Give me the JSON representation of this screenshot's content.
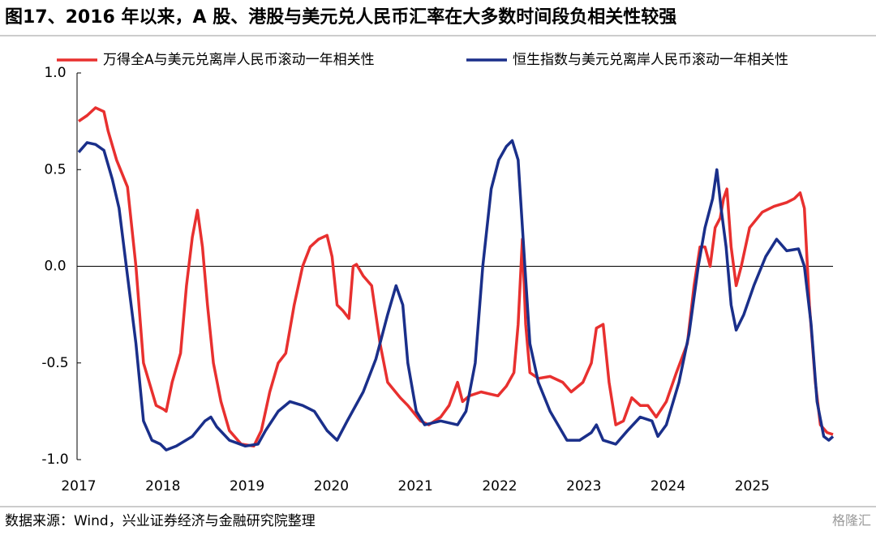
{
  "chart_data": {
    "type": "line",
    "title": "图17、2016 年以来，A 股、港股与美元兑人民币汇率在大多数时间段负相关性较强",
    "source": "数据来源：Wind，兴业证券经济与金融研究院整理",
    "watermark": "格隆汇",
    "xlim": [
      2017,
      2025.96
    ],
    "xticks": [
      2017,
      2018,
      2019,
      2020,
      2021,
      2022,
      2023,
      2024,
      2025
    ],
    "ylim": [
      -1,
      1
    ],
    "yticks": [
      {
        "value": -1,
        "label": "-1.0"
      },
      -0.5,
      {
        "value": 0,
        "label": "0.0"
      },
      0.5,
      {
        "value": 1,
        "label": "1.0"
      }
    ],
    "legend": "top",
    "series": [
      {
        "name": "万得全A与美元兑离岸人民币滚动一年相关性",
        "color": "#e8302f",
        "x": [
          2017.0,
          2017.1,
          2017.2,
          2017.3,
          2017.35,
          2017.45,
          2017.58,
          2017.68,
          2017.77,
          2017.92,
          2018.01,
          2018.04,
          2018.11,
          2018.21,
          2018.28,
          2018.35,
          2018.41,
          2018.47,
          2018.53,
          2018.6,
          2018.69,
          2018.79,
          2018.93,
          2019.08,
          2019.17,
          2019.27,
          2019.37,
          2019.46,
          2019.56,
          2019.66,
          2019.75,
          2019.85,
          2019.95,
          2020.01,
          2020.07,
          2020.14,
          2020.21,
          2020.26,
          2020.3,
          2020.38,
          2020.48,
          2020.58,
          2020.67,
          2020.82,
          2020.91,
          2021.06,
          2021.16,
          2021.3,
          2021.4,
          2021.5,
          2021.56,
          2021.64,
          2021.78,
          2021.88,
          2021.98,
          2022.08,
          2022.17,
          2022.22,
          2022.27,
          2022.31,
          2022.36,
          2022.46,
          2022.6,
          2022.75,
          2022.85,
          2022.99,
          2023.09,
          2023.15,
          2023.23,
          2023.3,
          2023.38,
          2023.47,
          2023.57,
          2023.67,
          2023.76,
          2023.86,
          2023.98,
          2024.1,
          2024.23,
          2024.31,
          2024.38,
          2024.44,
          2024.5,
          2024.56,
          2024.62,
          2024.66,
          2024.7,
          2024.75,
          2024.81,
          2024.87,
          2024.97,
          2025.12,
          2025.26,
          2025.41,
          2025.5,
          2025.57,
          2025.62,
          2025.68,
          2025.75,
          2025.81,
          2025.89,
          2025.96
        ],
        "values": [
          0.75,
          0.78,
          0.82,
          0.8,
          0.7,
          0.55,
          0.41,
          0.0,
          -0.5,
          -0.72,
          -0.74,
          -0.75,
          -0.6,
          -0.45,
          -0.1,
          0.15,
          0.29,
          0.1,
          -0.2,
          -0.5,
          -0.7,
          -0.85,
          -0.92,
          -0.93,
          -0.85,
          -0.65,
          -0.5,
          -0.45,
          -0.2,
          0.0,
          0.1,
          0.14,
          0.16,
          0.05,
          -0.2,
          -0.23,
          -0.27,
          0.0,
          0.01,
          -0.05,
          -0.1,
          -0.4,
          -0.6,
          -0.68,
          -0.72,
          -0.8,
          -0.82,
          -0.78,
          -0.72,
          -0.6,
          -0.7,
          -0.67,
          -0.65,
          -0.66,
          -0.67,
          -0.62,
          -0.55,
          -0.3,
          0.14,
          -0.3,
          -0.55,
          -0.58,
          -0.57,
          -0.6,
          -0.65,
          -0.6,
          -0.5,
          -0.32,
          -0.3,
          -0.6,
          -0.82,
          -0.8,
          -0.68,
          -0.72,
          -0.72,
          -0.78,
          -0.7,
          -0.55,
          -0.4,
          -0.1,
          0.1,
          0.1,
          0.0,
          0.2,
          0.25,
          0.35,
          0.4,
          0.1,
          -0.1,
          0.0,
          0.2,
          0.28,
          0.31,
          0.33,
          0.35,
          0.38,
          0.3,
          -0.2,
          -0.6,
          -0.82,
          -0.86,
          -0.87
        ]
      },
      {
        "name": "恒生指数与美元兑离岸人民币滚动一年相关性",
        "color": "#1a2f8a",
        "x": [
          2017.0,
          2017.1,
          2017.2,
          2017.3,
          2017.4,
          2017.48,
          2017.58,
          2017.68,
          2017.77,
          2017.87,
          2017.97,
          2018.04,
          2018.16,
          2018.35,
          2018.5,
          2018.57,
          2018.64,
          2018.79,
          2018.98,
          2019.13,
          2019.22,
          2019.37,
          2019.51,
          2019.66,
          2019.8,
          2019.95,
          2020.07,
          2020.19,
          2020.38,
          2020.53,
          2020.67,
          2020.77,
          2020.85,
          2020.91,
          2021.01,
          2021.11,
          2021.3,
          2021.5,
          2021.6,
          2021.71,
          2021.8,
          2021.9,
          2021.99,
          2022.08,
          2022.15,
          2022.22,
          2022.3,
          2022.36,
          2022.46,
          2022.6,
          2022.8,
          2022.95,
          2023.09,
          2023.15,
          2023.23,
          2023.38,
          2023.52,
          2023.67,
          2023.81,
          2023.88,
          2023.98,
          2024.13,
          2024.25,
          2024.36,
          2024.44,
          2024.53,
          2024.58,
          2024.63,
          2024.69,
          2024.75,
          2024.81,
          2024.9,
          2025.02,
          2025.16,
          2025.29,
          2025.41,
          2025.55,
          2025.62,
          2025.7,
          2025.77,
          2025.85,
          2025.91,
          2025.96
        ],
        "values": [
          0.59,
          0.64,
          0.63,
          0.6,
          0.45,
          0.3,
          -0.05,
          -0.4,
          -0.8,
          -0.9,
          -0.92,
          -0.95,
          -0.93,
          -0.88,
          -0.8,
          -0.78,
          -0.83,
          -0.9,
          -0.93,
          -0.92,
          -0.85,
          -0.75,
          -0.7,
          -0.72,
          -0.75,
          -0.85,
          -0.9,
          -0.8,
          -0.65,
          -0.48,
          -0.25,
          -0.1,
          -0.2,
          -0.5,
          -0.75,
          -0.82,
          -0.8,
          -0.82,
          -0.75,
          -0.5,
          0.0,
          0.4,
          0.55,
          0.62,
          0.65,
          0.55,
          0.0,
          -0.4,
          -0.6,
          -0.75,
          -0.9,
          -0.9,
          -0.86,
          -0.82,
          -0.9,
          -0.92,
          -0.85,
          -0.78,
          -0.8,
          -0.88,
          -0.82,
          -0.6,
          -0.35,
          0.0,
          0.2,
          0.35,
          0.5,
          0.3,
          0.1,
          -0.2,
          -0.33,
          -0.25,
          -0.1,
          0.05,
          0.14,
          0.08,
          0.09,
          0.0,
          -0.3,
          -0.7,
          -0.88,
          -0.9,
          -0.88
        ]
      }
    ]
  }
}
